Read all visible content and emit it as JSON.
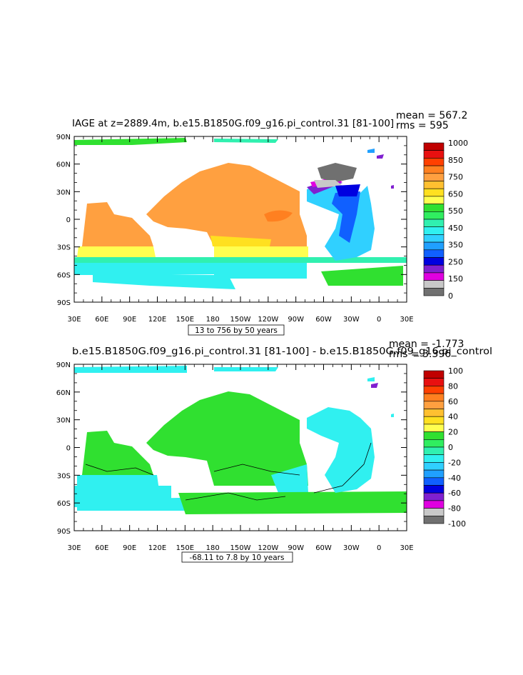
{
  "chart_data": [
    {
      "type": "heatmap",
      "title": "IAGE at z=2889.4m, b.e15.B1850G.f09_g16.pi_control.31  [81-100]",
      "mean_text": "mean = 567.2",
      "rms_text": "rms = 595",
      "xticks": [
        "30E",
        "60E",
        "90E",
        "120E",
        "150E",
        "180",
        "150W",
        "120W",
        "90W",
        "60W",
        "30W",
        "0",
        "30E"
      ],
      "yticks": [
        "90N",
        "60N",
        "30N",
        "0",
        "30S",
        "60S",
        "90S"
      ],
      "colorbar_labels": [
        "1000",
        "850",
        "750",
        "650",
        "550",
        "450",
        "350",
        "250",
        "150",
        "0"
      ],
      "colors": [
        "#c00000",
        "#e81010",
        "#ff4000",
        "#ff8020",
        "#ffa040",
        "#ffc030",
        "#ffe020",
        "#ffff50",
        "#30e030",
        "#30ee60",
        "#30f0b0",
        "#30f0f0",
        "#30d0ff",
        "#20a0ff",
        "#1060ff",
        "#0000e0",
        "#8020d0",
        "#e000e0",
        "#c8c8c8",
        "#707070"
      ],
      "contour_info": "13 to 756 by 50 years"
    },
    {
      "type": "heatmap",
      "title": "b.e15.B1850G.f09_g16.pi_control.31  [81-100]  -  b.e15.B1850G.f09_g16.pi_control",
      "mean_text": "mean = -1.773",
      "rms_text": "rms = 3.396",
      "xticks": [
        "30E",
        "60E",
        "90E",
        "120E",
        "150E",
        "180",
        "150W",
        "120W",
        "90W",
        "60W",
        "30W",
        "0",
        "30E"
      ],
      "yticks": [
        "90N",
        "60N",
        "30N",
        "0",
        "30S",
        "60S",
        "90S"
      ],
      "colorbar_labels": [
        "100",
        "80",
        "60",
        "40",
        "20",
        "0",
        "-20",
        "-40",
        "-60",
        "-80",
        "-100"
      ],
      "colors": [
        "#c00000",
        "#e81010",
        "#ff4000",
        "#ff8020",
        "#ffa040",
        "#ffc030",
        "#ffe020",
        "#ffff50",
        "#30e030",
        "#30ee60",
        "#30f0b0",
        "#30f0f0",
        "#30d0ff",
        "#20a0ff",
        "#1060ff",
        "#0000e0",
        "#8020d0",
        "#e000e0",
        "#c8c8c8",
        "#707070"
      ],
      "contour_info": "-68.11 to 7.8 by 10 years"
    }
  ]
}
